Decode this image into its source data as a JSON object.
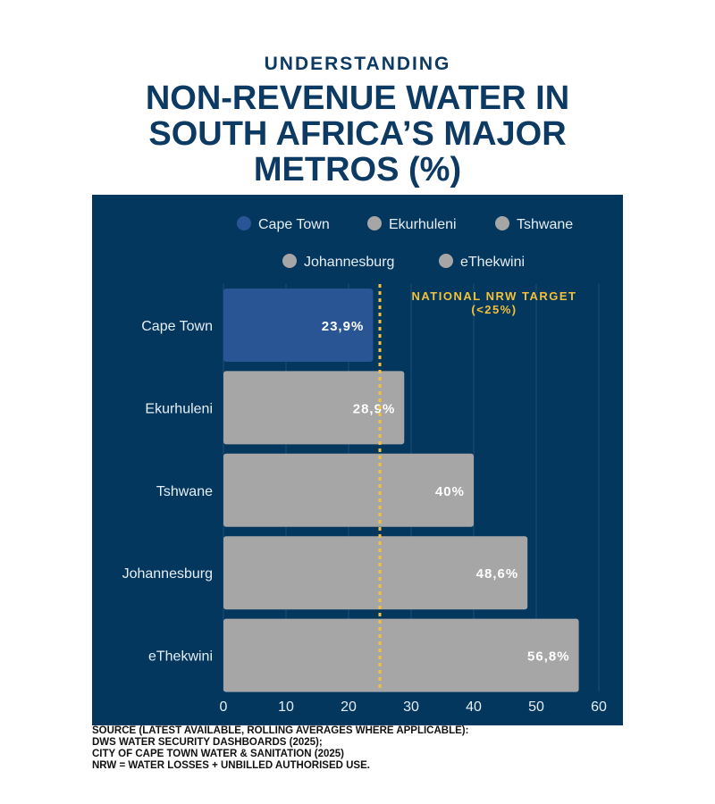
{
  "header": {
    "kicker": "UNDERSTANDING",
    "title_lines": [
      "NON-REVENUE WATER IN",
      "SOUTH AFRICA’S MAJOR",
      "METROS (%)"
    ]
  },
  "chart_data": {
    "type": "bar",
    "orientation": "horizontal",
    "title": "UNDERSTANDING NON-REVENUE WATER IN SOUTH AFRICA’S MAJOR METROS (%)",
    "categories": [
      "Cape Town",
      "Ekurhuleni",
      "Tshwane",
      "Johannesburg",
      "eThekwini"
    ],
    "values": [
      23.9,
      28.9,
      40,
      48.6,
      56.8
    ],
    "value_labels": [
      "23,9%",
      "28,9%",
      "40%",
      "48,6%",
      "56,8%"
    ],
    "bar_colors": [
      "#2a5594",
      "#a6a6a6",
      "#a6a6a6",
      "#a6a6a6",
      "#a6a6a6"
    ],
    "legend": [
      {
        "name": "Cape Town",
        "color": "#2a5594"
      },
      {
        "name": "Ekurhuleni",
        "color": "#a6a6a6"
      },
      {
        "name": "Tshwane",
        "color": "#a6a6a6"
      },
      {
        "name": "Johannesburg",
        "color": "#a6a6a6"
      },
      {
        "name": "eThekwini",
        "color": "#a6a6a6"
      }
    ],
    "legend_position": "top",
    "xlim": [
      0,
      60
    ],
    "xticks": [
      0,
      10,
      20,
      30,
      40,
      50,
      60
    ],
    "grid": true,
    "reference_line": {
      "value": 25,
      "label_lines": [
        "NATIONAL NRW TARGET",
        "(<25%)"
      ],
      "color": "#f3c13a"
    },
    "xlabel": "",
    "ylabel": ""
  },
  "source": {
    "lines": [
      "SOURCE (LATEST AVAILABLE, ROLLING AVERAGES WHERE APPLICABLE):",
      "DWS WATER SECURITY DASHBOARDS (2025);",
      "CITY OF CAPE TOWN WATER & SANITATION (2025)",
      "NRW = WATER LOSSES + UNBILLED AUTHORISED USE."
    ]
  },
  "colors": {
    "panel_bg": "#03375e",
    "title": "#0d3a63",
    "grid": "#1e4f7a",
    "axis_text": "#e6eef5",
    "value_text": "#ffffff"
  }
}
